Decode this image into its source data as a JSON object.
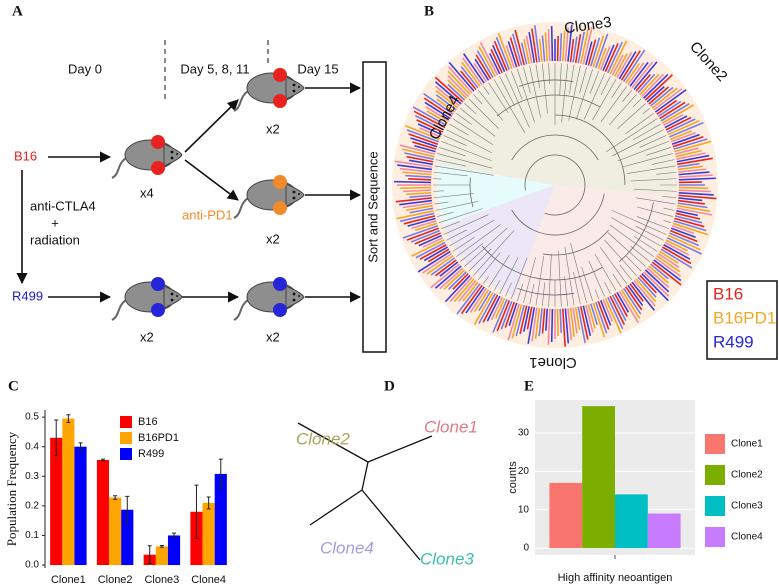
{
  "panel_a": {
    "label": "A",
    "days": [
      "Day 0",
      "Day 5, 8, 11",
      "Day 15"
    ],
    "cell_lines": [
      "B16",
      "R499"
    ],
    "treatment": [
      "anti-CTLA4",
      "+",
      "radiation"
    ],
    "mouse_counts": [
      "x4",
      "x2",
      "x2",
      "x2",
      "x2"
    ],
    "secondary_treatment": "anti-PD1",
    "final_step": "Sort and Sequence"
  },
  "panel_b": {
    "label": "B",
    "clones": [
      "Clone1",
      "Clone2",
      "Clone3",
      "Clone4"
    ],
    "legend": [
      "B16",
      "B16PD1",
      "R499"
    ]
  },
  "panel_d": {
    "label": "D",
    "leaves": [
      "Clone1",
      "Clone2",
      "Clone3",
      "Clone4"
    ]
  },
  "chart_data": [
    {
      "type": "bar",
      "panel_label": "C",
      "y_label": "Population Frequency",
      "categories": [
        "Clone1",
        "Clone2",
        "Clone3",
        "Clone4"
      ],
      "series": [
        {
          "name": "B16",
          "color": "#ff0000",
          "values": [
            0.43,
            0.355,
            0.035,
            0.18
          ],
          "errors": [
            0.06,
            0.003,
            0.03,
            0.09
          ]
        },
        {
          "name": "B16PD1",
          "color": "#ffa500",
          "values": [
            0.495,
            0.228,
            0.063,
            0.21
          ],
          "errors": [
            0.013,
            0.006,
            0.003,
            0.02
          ]
        },
        {
          "name": "R499",
          "color": "#0000ff",
          "values": [
            0.4,
            0.187,
            0.1,
            0.308
          ],
          "errors": [
            0.013,
            0.045,
            0.008,
            0.05
          ]
        }
      ],
      "ylim": [
        -0.01,
        0.524
      ],
      "yticks": [
        {
          "value": 0,
          "label": "0.0"
        },
        0.1,
        0.2,
        0.3,
        0.4,
        0.5
      ],
      "grid": false,
      "legend": "top-right"
    },
    {
      "type": "bar",
      "panel_label": "E",
      "x_label": "High affinity neoantigen",
      "y_label": "counts",
      "categories": [
        "Clone1",
        "Clone2",
        "Clone3",
        "Clone4"
      ],
      "values": [
        17,
        37,
        14,
        9
      ],
      "colors": [
        "#f8766d",
        "#7cae00",
        "#00bfc4",
        "#c77cff"
      ],
      "ylim": [
        -1.8,
        38.6
      ],
      "yticks": [
        0,
        10,
        20,
        30
      ],
      "grid": true,
      "legend": "right"
    }
  ]
}
